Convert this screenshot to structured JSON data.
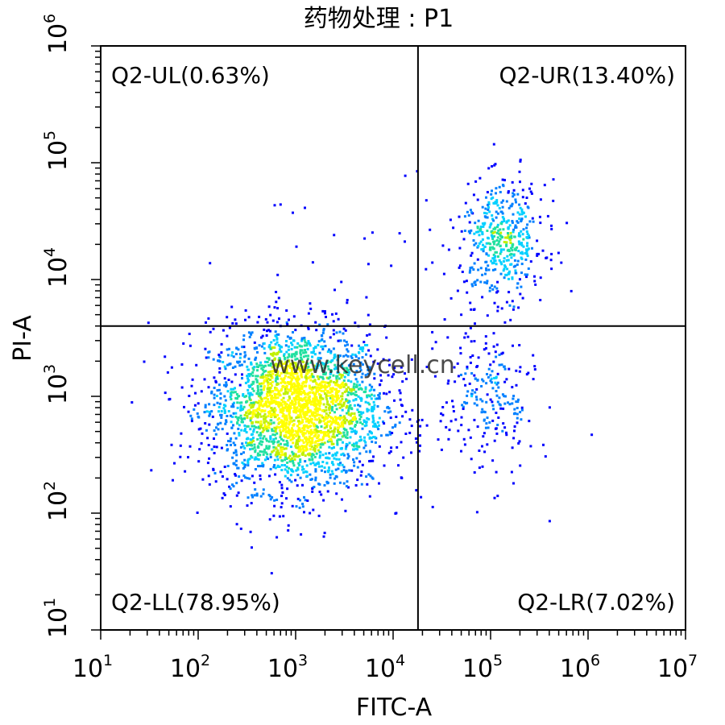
{
  "chart_data": {
    "type": "scatter",
    "title": "药物处理 : P1",
    "xlabel": "FITC-A",
    "ylabel": "PI-A",
    "x_scale": "log",
    "y_scale": "log",
    "xlim": [
      10,
      10000000
    ],
    "ylim": [
      10,
      1000000
    ],
    "x_ticks": [
      {
        "base": "10",
        "exp": "1",
        "value": 10
      },
      {
        "base": "10",
        "exp": "2",
        "value": 100
      },
      {
        "base": "10",
        "exp": "3",
        "value": 1000
      },
      {
        "base": "10",
        "exp": "4",
        "value": 10000
      },
      {
        "base": "10",
        "exp": "5",
        "value": 100000
      },
      {
        "base": "10",
        "exp": "6",
        "value": 1000000
      },
      {
        "base": "10",
        "exp": "7",
        "value": 10000000
      }
    ],
    "y_ticks": [
      {
        "base": "10",
        "exp": "1",
        "value": 10
      },
      {
        "base": "10",
        "exp": "2",
        "value": 100
      },
      {
        "base": "10",
        "exp": "3",
        "value": 1000
      },
      {
        "base": "10",
        "exp": "4",
        "value": 10000
      },
      {
        "base": "10",
        "exp": "5",
        "value": 100000
      },
      {
        "base": "10",
        "exp": "6",
        "value": 1000000
      }
    ],
    "gate": {
      "x": 18000,
      "y": 4000
    },
    "quadrants": [
      {
        "id": "UL",
        "label": "Q2-UL(0.63%)",
        "percent": 0.63
      },
      {
        "id": "UR",
        "label": "Q2-UR(13.40%)",
        "percent": 13.4
      },
      {
        "id": "LL",
        "label": "Q2-LL(78.95%)",
        "percent": 78.95
      },
      {
        "id": "LR",
        "label": "Q2-LR(7.02%)",
        "percent": 7.02
      }
    ],
    "clusters": [
      {
        "name": "LL",
        "center_x": 1000,
        "center_y": 800,
        "spread_x_decades": 0.45,
        "spread_y_decades": 0.35,
        "share": 0.7895
      },
      {
        "name": "UR",
        "center_x": 130000,
        "center_y": 22000,
        "spread_x_decades": 0.22,
        "spread_y_decades": 0.25,
        "share": 0.134
      },
      {
        "name": "LR",
        "center_x": 90000,
        "center_y": 1000,
        "spread_x_decades": 0.25,
        "spread_y_decades": 0.35,
        "share": 0.0702
      },
      {
        "name": "UL",
        "center_x": 3000,
        "center_y": 15000,
        "spread_x_decades": 0.5,
        "spread_y_decades": 0.4,
        "share": 0.0063
      }
    ],
    "event_count_estimate": 3500,
    "colormap": [
      "#0000ff",
      "#0080ff",
      "#00d0ff",
      "#20e0a0",
      "#c0f000",
      "#ffff00"
    ],
    "grid": false
  },
  "watermark": "www.keycell.cn"
}
